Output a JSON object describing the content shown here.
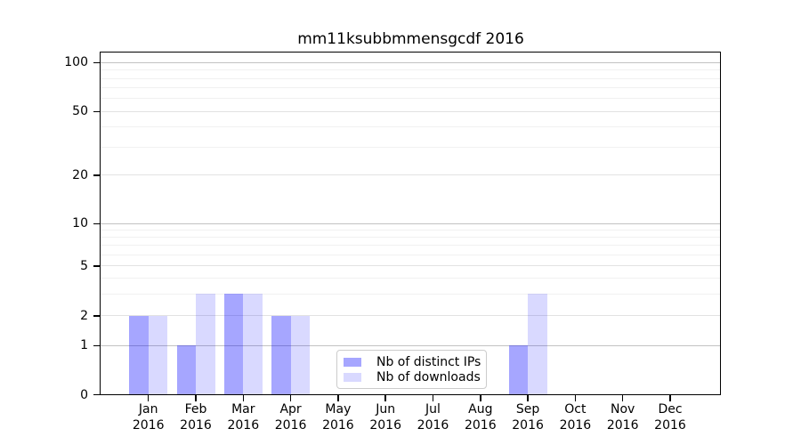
{
  "chart_data": {
    "type": "bar",
    "title": "mm11ksubbmmensgcdf 2016",
    "categories": [
      {
        "month": "Jan",
        "year": "2016"
      },
      {
        "month": "Feb",
        "year": "2016"
      },
      {
        "month": "Mar",
        "year": "2016"
      },
      {
        "month": "Apr",
        "year": "2016"
      },
      {
        "month": "May",
        "year": "2016"
      },
      {
        "month": "Jun",
        "year": "2016"
      },
      {
        "month": "Jul",
        "year": "2016"
      },
      {
        "month": "Aug",
        "year": "2016"
      },
      {
        "month": "Sep",
        "year": "2016"
      },
      {
        "month": "Oct",
        "year": "2016"
      },
      {
        "month": "Nov",
        "year": "2016"
      },
      {
        "month": "Dec",
        "year": "2016"
      }
    ],
    "series": [
      {
        "name": "Nb of distinct IPs",
        "color": "rgba(0,0,255,0.35)",
        "values": [
          2,
          1,
          3,
          2,
          0,
          0,
          0,
          0,
          1,
          0,
          0,
          0
        ]
      },
      {
        "name": "Nb of downloads",
        "color": "rgba(0,0,255,0.15)",
        "values": [
          2,
          3,
          3,
          2,
          0,
          0,
          0,
          0,
          3,
          0,
          0,
          0
        ]
      }
    ],
    "y_axis": {
      "scale": "symlog",
      "range": [
        0,
        100
      ],
      "ticks": [
        0,
        1,
        2,
        5,
        10,
        20,
        50,
        100
      ],
      "minor_gridlines": [
        3,
        4,
        6,
        7,
        8,
        9,
        30,
        40,
        60,
        70,
        80,
        90
      ]
    },
    "legend_position": "lower center",
    "grid": "horizontal"
  },
  "colors": {
    "background": "#ffffff",
    "spine": "#000000",
    "text": "#000000",
    "grid_decade": "#c2c2c2",
    "grid_labeled": "#e2e2e2",
    "grid_minor": "#f1f1f1"
  }
}
